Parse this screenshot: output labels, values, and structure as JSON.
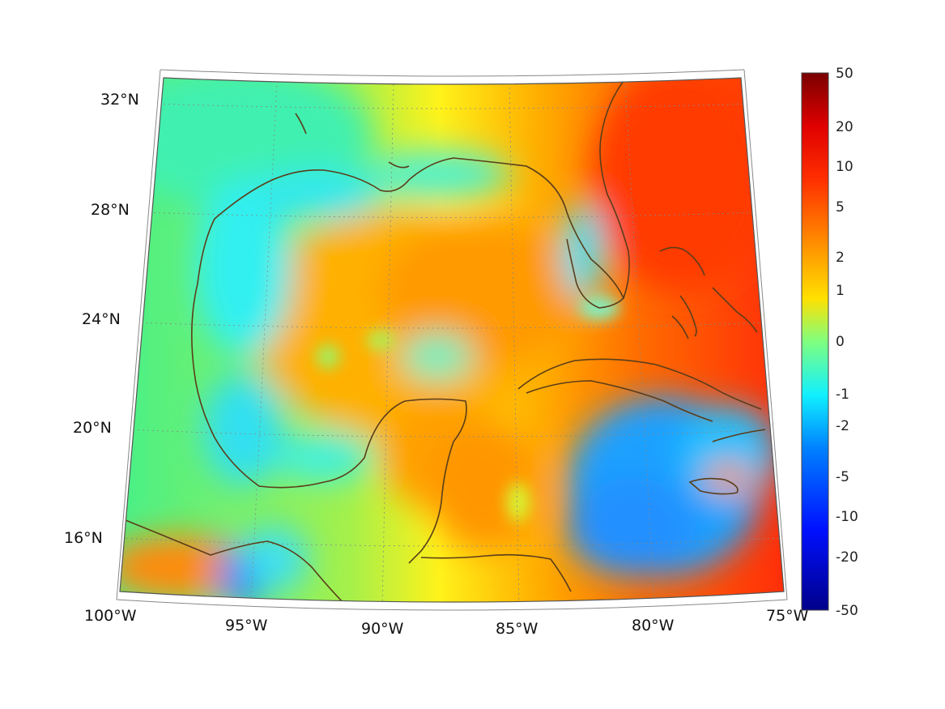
{
  "map": {
    "longitude_labels": [
      "100°W",
      "95°W",
      "90°W",
      "85°W",
      "80°W",
      "75°W"
    ],
    "latitude_labels": [
      "32°N",
      "28°N",
      "24°N",
      "20°N",
      "16°N"
    ],
    "colormap": "jet",
    "colorbar_ticks": [
      "50",
      "20",
      "10",
      "5",
      "2",
      "1",
      "0",
      "-1",
      "-2",
      "-5",
      "-10",
      "-20",
      "-50"
    ],
    "coastline_color": "#5a3d1a",
    "gridlines": "dotted"
  }
}
